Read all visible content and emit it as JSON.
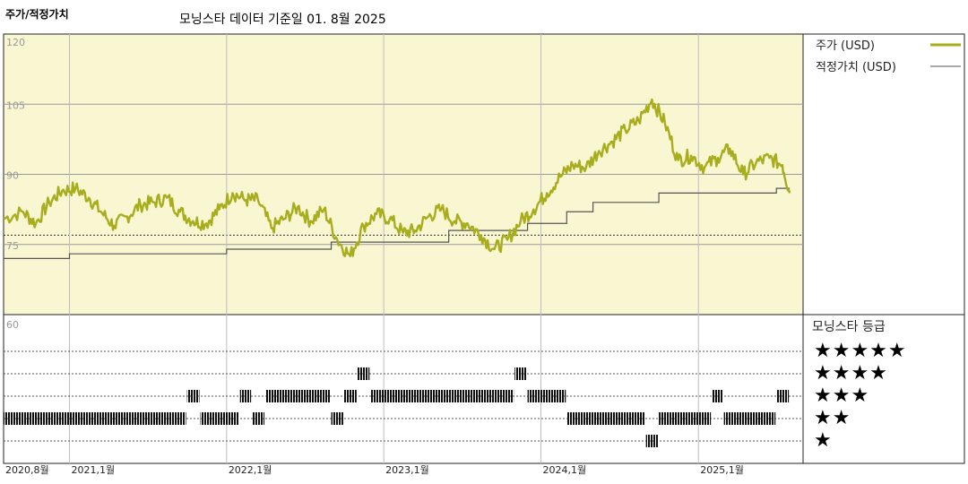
{
  "title": "주가/적정가치",
  "subtitle": "모닝스타 데이터 기준일 01. 8월 2025",
  "colors": {
    "price": "#a8ad1e",
    "fair": "#555555",
    "plot_bg": "#f9f6d2",
    "grid": "#9a9a9a",
    "rating": "#111111"
  },
  "chart_data": [
    {
      "type": "line",
      "title": "",
      "xlabel": "",
      "ylabel": "",
      "x_range": [
        "2020-08-01",
        "2025-08-01"
      ],
      "ylim": [
        60,
        120
      ],
      "y_ticks": [
        120,
        105,
        90,
        75,
        60
      ],
      "x_ticks": [
        {
          "date": "2020-08-01",
          "label": "2020,8월"
        },
        {
          "date": "2021-01-01",
          "label": "2021,1월"
        },
        {
          "date": "2022-01-01",
          "label": "2022,1월"
        },
        {
          "date": "2023-01-01",
          "label": "2023,1월"
        },
        {
          "date": "2024-01-01",
          "label": "2024,1월"
        },
        {
          "date": "2025-01-01",
          "label": "2025,1월"
        }
      ],
      "grid": true,
      "legend_position": "right",
      "series": [
        {
          "name": "주가 (USD)",
          "points": [
            [
              "2020-08-01",
              80.5
            ],
            [
              "2020-09-15",
              82.0
            ],
            [
              "2020-10-15",
              79.5
            ],
            [
              "2020-11-15",
              84.0
            ],
            [
              "2020-12-15",
              86.5
            ],
            [
              "2021-01-15",
              87.0
            ],
            [
              "2021-02-15",
              85.0
            ],
            [
              "2021-03-15",
              82.0
            ],
            [
              "2021-04-15",
              79.0
            ],
            [
              "2021-05-15",
              81.0
            ],
            [
              "2021-06-15",
              83.5
            ],
            [
              "2021-07-15",
              84.0
            ],
            [
              "2021-08-15",
              85.0
            ],
            [
              "2021-09-15",
              82.0
            ],
            [
              "2021-10-15",
              80.0
            ],
            [
              "2021-11-15",
              79.5
            ],
            [
              "2021-12-15",
              82.5
            ],
            [
              "2022-01-15",
              86.0
            ],
            [
              "2022-02-15",
              84.5
            ],
            [
              "2022-03-15",
              84.5
            ],
            [
              "2022-04-15",
              78.5
            ],
            [
              "2022-05-15",
              80.5
            ],
            [
              "2022-06-15",
              83.0
            ],
            [
              "2022-07-15",
              80.0
            ],
            [
              "2022-08-15",
              82.5
            ],
            [
              "2022-09-15",
              76.0
            ],
            [
              "2022-10-15",
              72.5
            ],
            [
              "2022-11-15",
              79.0
            ],
            [
              "2022-12-15",
              81.5
            ],
            [
              "2023-01-15",
              80.5
            ],
            [
              "2023-02-15",
              77.5
            ],
            [
              "2023-03-15",
              78.0
            ],
            [
              "2023-04-15",
              81.0
            ],
            [
              "2023-05-15",
              82.5
            ],
            [
              "2023-06-15",
              80.0
            ],
            [
              "2023-07-15",
              79.5
            ],
            [
              "2023-08-15",
              77.0
            ],
            [
              "2023-09-15",
              74.0
            ],
            [
              "2023-10-15",
              76.0
            ],
            [
              "2023-11-15",
              80.0
            ],
            [
              "2023-12-15",
              82.5
            ],
            [
              "2024-01-15",
              86.0
            ],
            [
              "2024-02-15",
              89.5
            ],
            [
              "2024-03-15",
              92.0
            ],
            [
              "2024-04-15",
              91.5
            ],
            [
              "2024-05-15",
              95.0
            ],
            [
              "2024-06-15",
              97.0
            ],
            [
              "2024-07-15",
              99.5
            ],
            [
              "2024-08-15",
              101.5
            ],
            [
              "2024-09-15",
              106.0
            ],
            [
              "2024-10-15",
              101.0
            ],
            [
              "2024-11-15",
              93.0
            ],
            [
              "2024-12-15",
              94.0
            ],
            [
              "2025-01-15",
              91.5
            ],
            [
              "2025-02-15",
              93.5
            ],
            [
              "2025-03-15",
              95.5
            ],
            [
              "2025-04-15",
              90.0
            ],
            [
              "2025-05-15",
              92.5
            ],
            [
              "2025-06-15",
              93.5
            ],
            [
              "2025-07-15",
              92.0
            ],
            [
              "2025-08-01",
              86.0
            ]
          ]
        },
        {
          "name": "적정가치 (USD)",
          "steps": [
            [
              "2020-08-01",
              72.0
            ],
            [
              "2021-01-01",
              73.0
            ],
            [
              "2022-01-01",
              74.0
            ],
            [
              "2022-09-01",
              75.5
            ],
            [
              "2023-06-01",
              78.0
            ],
            [
              "2023-12-01",
              79.5
            ],
            [
              "2024-03-01",
              82.0
            ],
            [
              "2024-05-01",
              84.0
            ],
            [
              "2024-10-01",
              86.0
            ],
            [
              "2025-07-01",
              87.0
            ],
            [
              "2025-08-01",
              87.0
            ]
          ]
        }
      ]
    },
    {
      "type": "heatmap",
      "title": "모닝스타 등급",
      "levels": [
        "★★★★★",
        "★★★★",
        "★★★",
        "★★",
        "★"
      ],
      "level_values": [
        5,
        4,
        3,
        2,
        1
      ],
      "periods": [
        {
          "start": "2020-08-01",
          "end": "2021-10-01",
          "rating": 2
        },
        {
          "start": "2021-10-01",
          "end": "2021-11-01",
          "rating": 3
        },
        {
          "start": "2021-11-01",
          "end": "2022-02-01",
          "rating": 2
        },
        {
          "start": "2022-02-01",
          "end": "2022-03-01",
          "rating": 3
        },
        {
          "start": "2022-03-01",
          "end": "2022-04-01",
          "rating": 2
        },
        {
          "start": "2022-04-01",
          "end": "2022-09-01",
          "rating": 3
        },
        {
          "start": "2022-09-01",
          "end": "2022-10-01",
          "rating": 2
        },
        {
          "start": "2022-10-01",
          "end": "2022-11-01",
          "rating": 3
        },
        {
          "start": "2022-11-01",
          "end": "2022-12-01",
          "rating": 4
        },
        {
          "start": "2022-12-01",
          "end": "2023-11-01",
          "rating": 3
        },
        {
          "start": "2023-11-01",
          "end": "2023-12-01",
          "rating": 4
        },
        {
          "start": "2023-12-01",
          "end": "2024-03-01",
          "rating": 3
        },
        {
          "start": "2024-03-01",
          "end": "2024-09-01",
          "rating": 2
        },
        {
          "start": "2024-09-01",
          "end": "2024-10-01",
          "rating": 1
        },
        {
          "start": "2024-10-01",
          "end": "2025-02-01",
          "rating": 2
        },
        {
          "start": "2025-02-01",
          "end": "2025-03-01",
          "rating": 3
        },
        {
          "start": "2025-03-01",
          "end": "2025-07-01",
          "rating": 2
        },
        {
          "start": "2025-07-01",
          "end": "2025-08-01",
          "rating": 3
        }
      ]
    }
  ]
}
